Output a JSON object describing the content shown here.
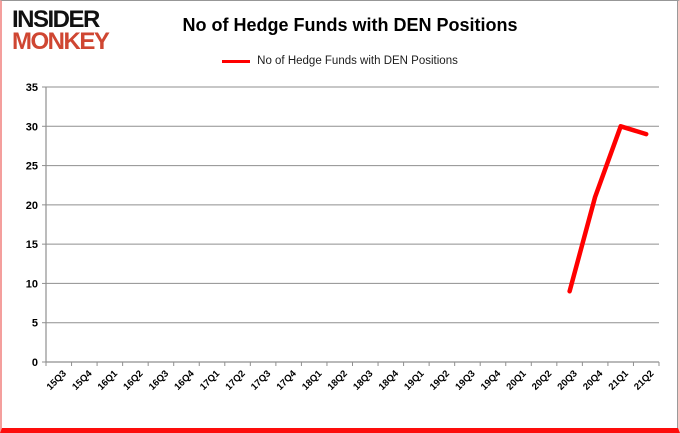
{
  "header": {
    "logo_line1": "INSIDER",
    "logo_line2": "MONKEY",
    "title": "No of Hedge Funds with DEN Positions"
  },
  "legend": {
    "label": "No of Hedge Funds with DEN Positions",
    "swatch_color": "#ff0000"
  },
  "colors": {
    "series_red": "#ff0000",
    "grid_gray": "#8f8f8f",
    "axis_gray": "#8f8f8f",
    "label_black": "#000000",
    "frame_bottom_red": "#fd0d0c",
    "frame_side_pink": "#f49f9d",
    "logo_black": "#111111",
    "logo_red": "#cf4632"
  },
  "chart_data": {
    "type": "line",
    "title": "No of Hedge Funds with DEN Positions",
    "categories": [
      "15Q3",
      "15Q4",
      "16Q1",
      "16Q2",
      "16Q3",
      "16Q4",
      "17Q1",
      "17Q2",
      "17Q3",
      "17Q4",
      "18Q1",
      "18Q2",
      "18Q3",
      "18Q4",
      "19Q1",
      "19Q2",
      "19Q3",
      "19Q4",
      "20Q1",
      "20Q2",
      "20Q3",
      "20Q4",
      "21Q1",
      "21Q2"
    ],
    "series": [
      {
        "name": "No of Hedge Funds with DEN Positions",
        "color": "#ff0000",
        "values": [
          null,
          null,
          null,
          null,
          null,
          null,
          null,
          null,
          null,
          null,
          null,
          null,
          null,
          null,
          null,
          null,
          null,
          null,
          null,
          null,
          9,
          21,
          30,
          29
        ]
      }
    ],
    "xlabel": "",
    "ylabel": "",
    "ylim": [
      0,
      35
    ],
    "ytick_step": 5,
    "yticks": [
      0,
      5,
      10,
      15,
      20,
      25,
      30,
      35
    ],
    "grid": true,
    "legend_position": "top"
  }
}
